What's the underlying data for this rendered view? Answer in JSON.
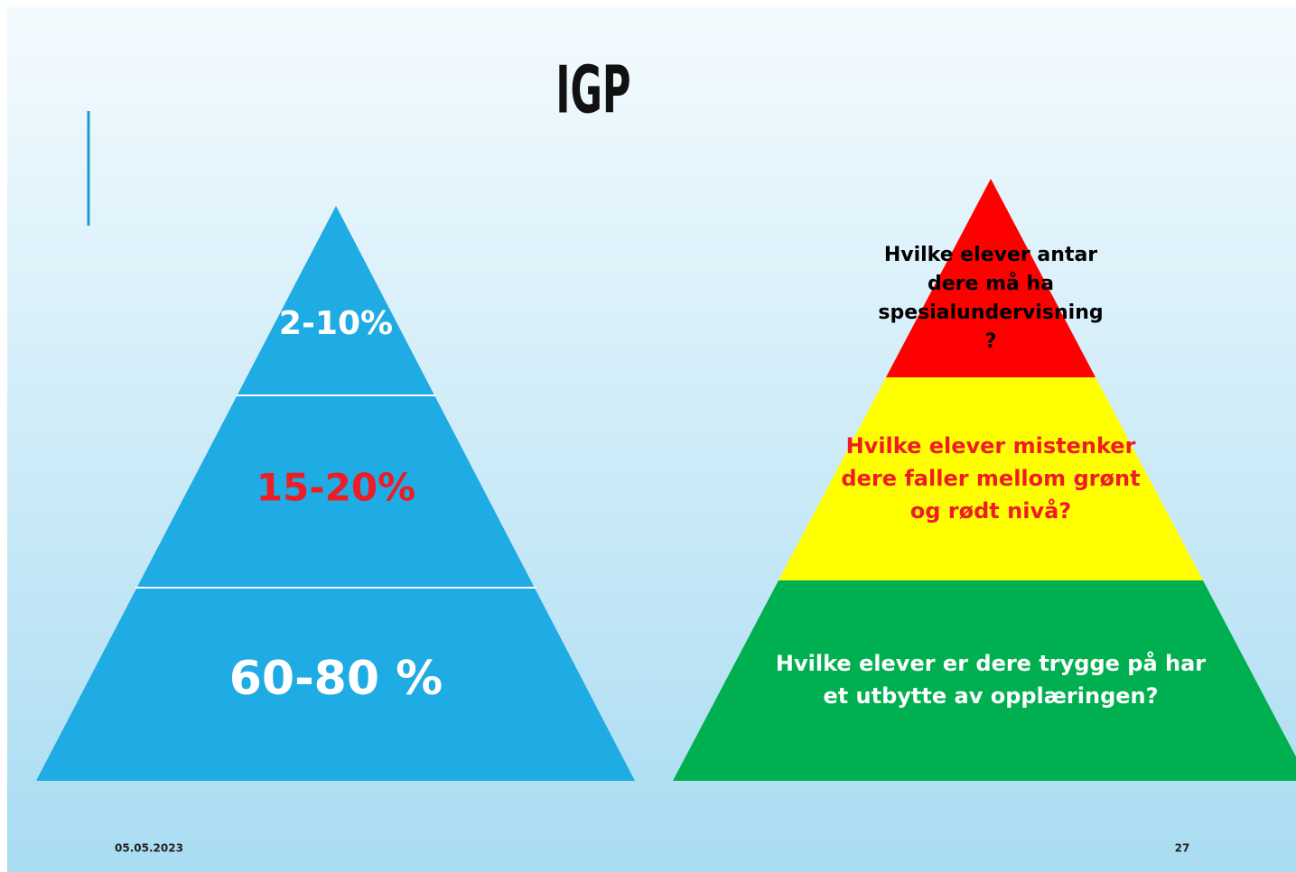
{
  "title": "IGP",
  "left_pyramid": {
    "levels": [
      "2-10%",
      "15-20%",
      "60-80 %"
    ]
  },
  "right_pyramid": {
    "levels": [
      {
        "lines": [
          "Hvilke elever antar",
          "dere må ha",
          "spesialundervisning",
          "?"
        ]
      },
      {
        "lines": [
          "Hvilke elever mistenker",
          "dere faller mellom grønt",
          "og rødt nivå?"
        ]
      },
      {
        "lines": [
          "Hvilke elever er dere trygge på har",
          "et utbytte av opplæringen?"
        ]
      }
    ]
  },
  "footer": {
    "date": "05.05.2023",
    "page": "27"
  }
}
